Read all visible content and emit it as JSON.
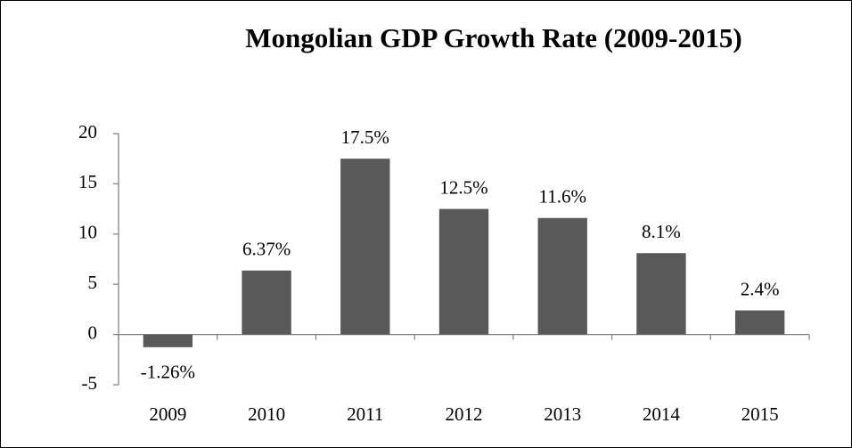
{
  "chart_data": {
    "type": "bar",
    "title": "Mongolian GDP Growth Rate (2009-2015)",
    "categories": [
      "2009",
      "2010",
      "2011",
      "2012",
      "2013",
      "2014",
      "2015"
    ],
    "values": [
      -1.26,
      6.37,
      17.5,
      12.5,
      11.6,
      8.1,
      2.4
    ],
    "value_labels": [
      "-1.26%",
      "6.37%",
      "17.5%",
      "12.5%",
      "11.6%",
      "8.1%",
      "2.4%"
    ],
    "color": "#595959",
    "ylim": [
      -5,
      20
    ],
    "yticks": [
      -5,
      0,
      5,
      10,
      15,
      20
    ],
    "grid": false
  }
}
